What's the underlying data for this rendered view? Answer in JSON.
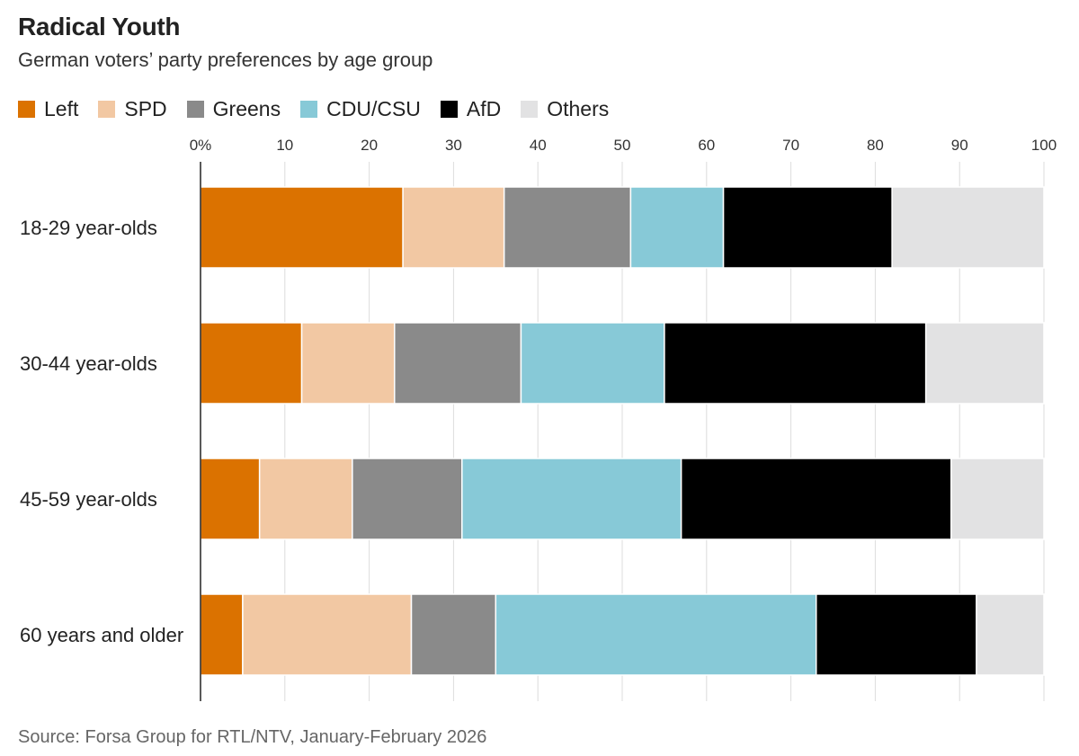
{
  "title": "Radical Youth",
  "subtitle": "German voters’ party preferences by age group",
  "source": "Source: Forsa Group for RTL/NTV, January-February 2026",
  "legend": [
    {
      "name": "Left",
      "color": "#db7200"
    },
    {
      "name": "SPD",
      "color": "#f2c8a3"
    },
    {
      "name": "Greens",
      "color": "#8a8a8a"
    },
    {
      "name": "CDU/CSU",
      "color": "#87c9d7"
    },
    {
      "name": "AfD",
      "color": "#000000"
    },
    {
      "name": "Others",
      "color": "#e2e2e3"
    }
  ],
  "chart_data": {
    "type": "bar",
    "orientation": "horizontal",
    "stacked": true,
    "title": "Radical Youth",
    "subtitle": "German voters’ party preferences by age group",
    "xlabel": "",
    "ylabel": "",
    "xlim": [
      0,
      100
    ],
    "xticks": [
      0,
      10,
      20,
      30,
      40,
      50,
      60,
      70,
      80,
      90,
      100
    ],
    "xtick_labels": [
      "0%",
      "10",
      "20",
      "30",
      "40",
      "50",
      "60",
      "70",
      "80",
      "90",
      "100"
    ],
    "grid": true,
    "legend_position": "top-left",
    "categories": [
      "18-29 year-olds",
      "30-44 year-olds",
      "45-59 year-olds",
      "60 years and older"
    ],
    "series": [
      {
        "name": "Left",
        "color": "#db7200",
        "values": [
          24,
          12,
          7,
          5
        ]
      },
      {
        "name": "SPD",
        "color": "#f2c8a3",
        "values": [
          12,
          11,
          11,
          20
        ]
      },
      {
        "name": "Greens",
        "color": "#8a8a8a",
        "values": [
          15,
          15,
          13,
          10
        ]
      },
      {
        "name": "CDU/CSU",
        "color": "#87c9d7",
        "values": [
          11,
          17,
          26,
          38
        ]
      },
      {
        "name": "AfD",
        "color": "#000000",
        "values": [
          20,
          31,
          32,
          19
        ]
      },
      {
        "name": "Others",
        "color": "#e2e2e3",
        "values": [
          18,
          14,
          11,
          8
        ]
      }
    ]
  }
}
